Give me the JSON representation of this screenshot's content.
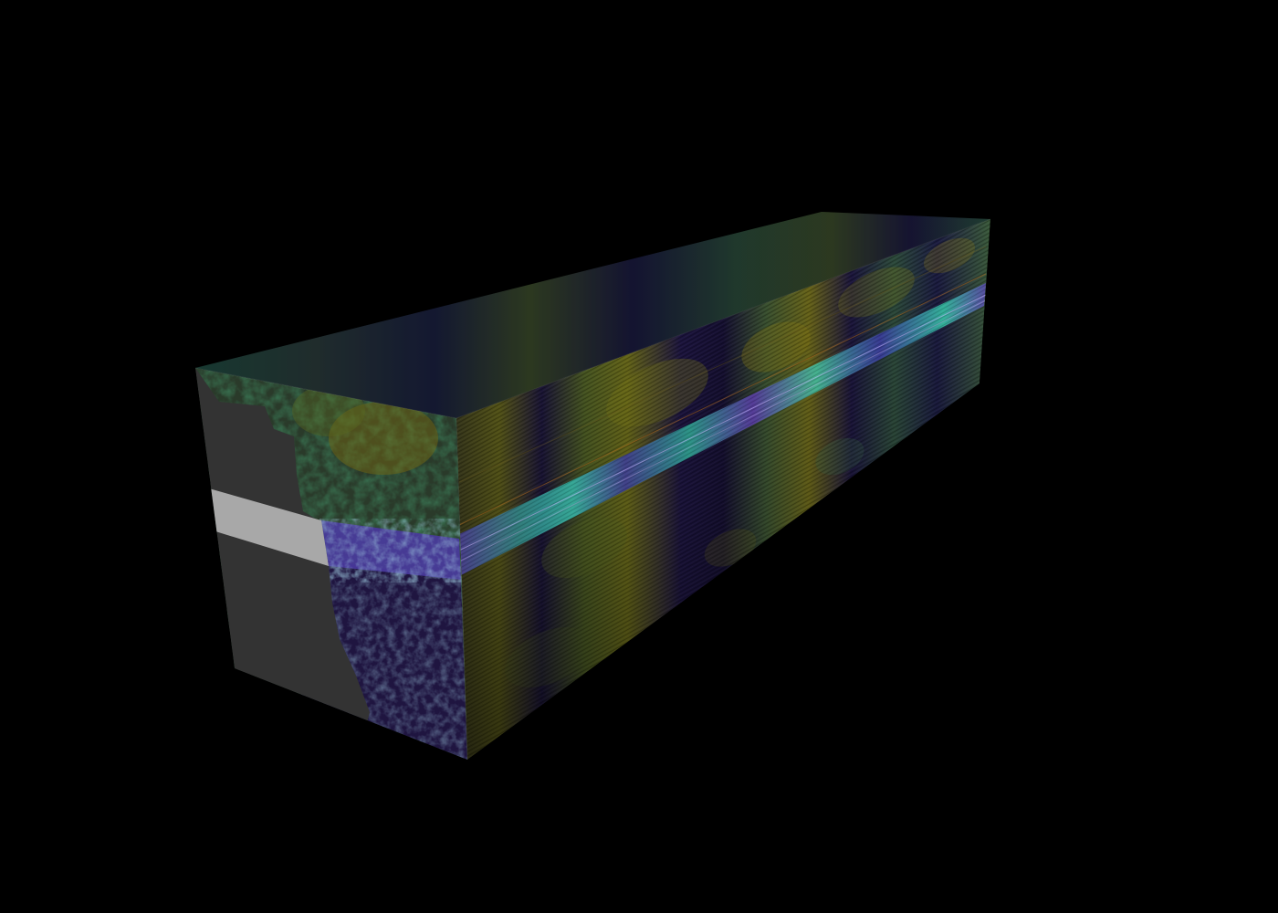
{
  "scene": {
    "subject": "datacube-volume",
    "colormap": "viridis",
    "background": "#000000",
    "colors": {
      "dark_purple": "#2a0f3f",
      "indigo": "#3b2a7a",
      "teal": "#1f7a74",
      "green": "#3f9a5a",
      "olive": "#7a7a1a",
      "gold": "#8a7a10",
      "masked_gray": "#333333",
      "masked_light": "#a8a8a8",
      "highlight_purple": "#6a4fc0",
      "highlight_cyan": "#35d1b8"
    }
  }
}
